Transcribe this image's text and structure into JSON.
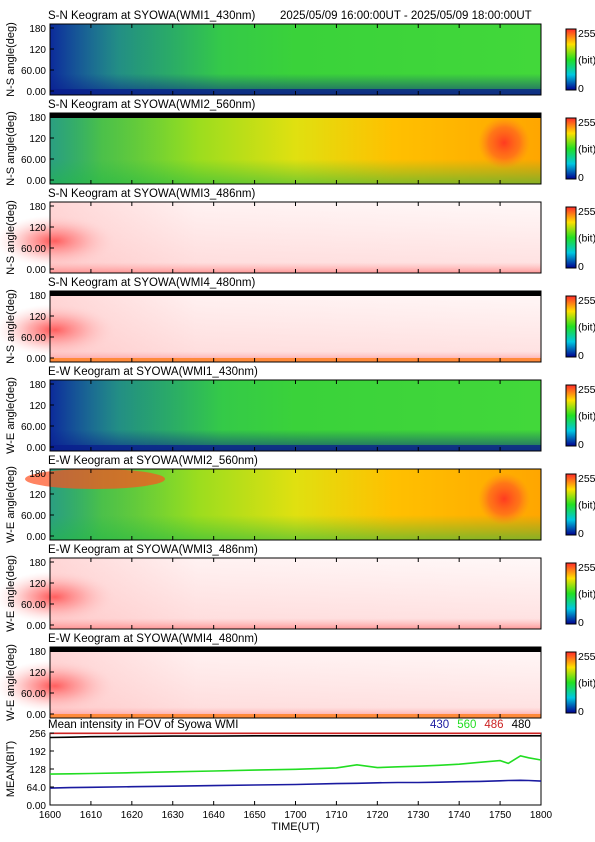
{
  "header": {
    "time_range": "2025/05/09 16:00:00UT - 2025/05/09 18:00:00UT"
  },
  "colorbar": {
    "max_label": "255",
    "unit_label": "(bit)",
    "min_label": "0"
  },
  "chart_data": [
    {
      "type": "heatmap",
      "title": "S-N Keogram at SYOWA(WMI1_430nm)",
      "ylabel": "N-S angle(deg)",
      "yticks": [
        "180",
        "120",
        "60.00",
        "0.00"
      ],
      "ylim": [
        0,
        180
      ],
      "palette": "green",
      "top_band": false,
      "bottom_band": false
    },
    {
      "type": "heatmap",
      "title": "S-N Keogram at SYOWA(WMI2_560nm)",
      "ylabel": "N-S angle(deg)",
      "yticks": [
        "180",
        "120",
        "60.00",
        "0.00"
      ],
      "ylim": [
        0,
        180
      ],
      "palette": "yellow",
      "top_band": true,
      "bottom_band": false
    },
    {
      "type": "heatmap",
      "title": "S-N Keogram at SYOWA(WMI3_486nm)",
      "ylabel": "N-S angle(deg)",
      "yticks": [
        "180",
        "120",
        "60.00",
        "0.00"
      ],
      "ylim": [
        0,
        180
      ],
      "palette": "red",
      "top_band": false,
      "bottom_band": false
    },
    {
      "type": "heatmap",
      "title": "S-N Keogram at SYOWA(WMI4_480nm)",
      "ylabel": "N-S angle(deg)",
      "yticks": [
        "180",
        "120",
        "60.00",
        "0.00"
      ],
      "ylim": [
        0,
        180
      ],
      "palette": "red",
      "top_band": true,
      "bottom_band": true
    },
    {
      "type": "heatmap",
      "title": "E-W Keogram at SYOWA(WMI1_430nm)",
      "ylabel": "W-E angle(deg)",
      "yticks": [
        "180",
        "120",
        "60.00",
        "0.00"
      ],
      "ylim": [
        0,
        180
      ],
      "palette": "green",
      "top_band": false,
      "bottom_band": false
    },
    {
      "type": "heatmap",
      "title": "E-W Keogram at SYOWA(WMI2_560nm)",
      "ylabel": "W-E angle(deg)",
      "yticks": [
        "180",
        "120",
        "60.00",
        "0.00"
      ],
      "ylim": [
        0,
        180
      ],
      "palette": "yellow",
      "top_band": false,
      "bottom_band": false
    },
    {
      "type": "heatmap",
      "title": "E-W Keogram at SYOWA(WMI3_486nm)",
      "ylabel": "W-E angle(deg)",
      "yticks": [
        "180",
        "120",
        "60.00",
        "0.00"
      ],
      "ylim": [
        0,
        180
      ],
      "palette": "red",
      "top_band": false,
      "bottom_band": false
    },
    {
      "type": "heatmap",
      "title": "E-W Keogram at SYOWA(WMI4_480nm)",
      "ylabel": "W-E angle(deg)",
      "yticks": [
        "180",
        "120",
        "60.00",
        "0.00"
      ],
      "ylim": [
        0,
        180
      ],
      "palette": "red",
      "top_band": true,
      "bottom_band": true
    },
    {
      "type": "line",
      "title": "Mean intensity in FOV of Syowa WMI",
      "xlabel": "TIME(UT)",
      "ylabel": "MEAN(BIT)",
      "ylim": [
        0,
        256
      ],
      "yticks": [
        "256",
        "192",
        "128",
        "64.0",
        "0.00"
      ],
      "xticks": [
        "1600",
        "1610",
        "1620",
        "1630",
        "1640",
        "1650",
        "1700",
        "1710",
        "1720",
        "1730",
        "1740",
        "1750",
        "1800"
      ],
      "x": [
        0,
        5,
        10,
        20,
        30,
        40,
        50,
        60,
        70,
        75,
        80,
        85,
        90,
        95,
        100,
        105,
        110,
        112,
        115,
        117,
        120
      ],
      "series": [
        {
          "name": "430",
          "color": "#1a1aa0",
          "values": [
            60,
            62,
            63,
            65,
            67,
            69,
            71,
            73,
            76,
            77,
            79,
            80,
            80,
            81,
            83,
            84,
            86,
            87,
            88,
            87,
            85
          ]
        },
        {
          "name": "560",
          "color": "#22dd22",
          "values": [
            110,
            111,
            112,
            115,
            118,
            121,
            124,
            127,
            132,
            143,
            133,
            136,
            138,
            141,
            145,
            152,
            158,
            148,
            175,
            168,
            160
          ]
        },
        {
          "name": "486",
          "color": "#cc2222",
          "values": [
            255,
            255,
            255,
            255,
            255,
            255,
            255,
            255,
            255,
            255,
            255,
            255,
            255,
            255,
            255,
            255,
            255,
            255,
            255,
            255,
            255
          ]
        },
        {
          "name": "480",
          "color": "#000000",
          "values": [
            240,
            241,
            243,
            244,
            245,
            245,
            246,
            246,
            246,
            246,
            246,
            246,
            246,
            246,
            246,
            246,
            246,
            246,
            246,
            246,
            246
          ]
        }
      ]
    }
  ]
}
